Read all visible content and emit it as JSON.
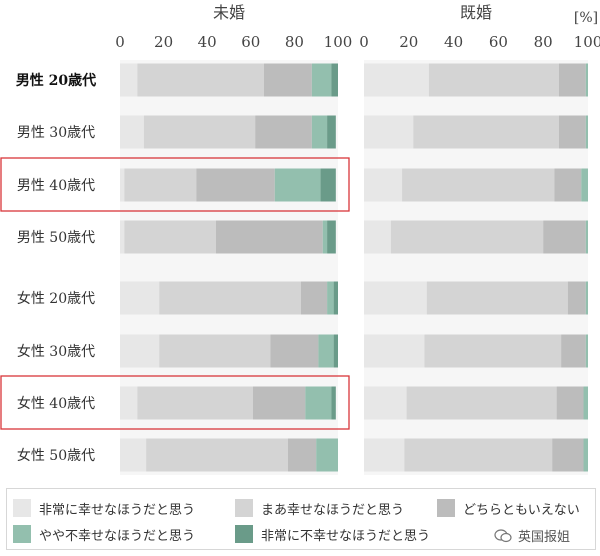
{
  "chart_data": {
    "type": "bar",
    "orientation": "horizontal",
    "stacked": true,
    "unit": "[%]",
    "xlim": [
      0,
      100
    ],
    "x_ticks": [
      "0",
      "20",
      "40",
      "60",
      "80",
      "100"
    ],
    "categories": [
      "男性 20歳代",
      "男性 30歳代",
      "男性 40歳代",
      "男性 50歳代",
      "女性 20歳代",
      "女性 30歳代",
      "女性 40歳代",
      "女性 50歳代"
    ],
    "bold_category_index": 0,
    "highlighted_categories": [
      2,
      6
    ],
    "series_names": [
      "非常に幸せなほうだと思う",
      "まあ幸せなほうだと思う",
      "どちらともいえない",
      "やや不幸せなほうだと思う",
      "非常に不幸せなほうだと思う"
    ],
    "series_colors": [
      "#e7e7e7",
      "#d4d4d4",
      "#bcbcbc",
      "#93bfae",
      "#6a9b89"
    ],
    "panels": [
      {
        "title": "未婚",
        "values": [
          [
            8,
            58,
            22,
            9,
            3
          ],
          [
            11,
            51,
            26,
            7,
            4
          ],
          [
            2,
            33,
            36,
            21,
            7
          ],
          [
            2,
            42,
            49,
            2,
            4
          ],
          [
            18,
            65,
            12,
            3,
            2
          ],
          [
            18,
            51,
            22,
            7,
            2
          ],
          [
            8,
            53,
            24,
            12,
            2
          ],
          [
            12,
            65,
            13,
            10,
            0
          ]
        ]
      },
      {
        "title": "既婚",
        "values": [
          [
            29,
            58,
            12,
            1,
            0
          ],
          [
            22,
            65,
            12,
            1,
            0
          ],
          [
            17,
            68,
            12,
            3,
            0
          ],
          [
            12,
            68,
            19,
            1,
            0
          ],
          [
            28,
            63,
            8,
            1,
            0
          ],
          [
            27,
            61,
            11,
            1,
            0
          ],
          [
            19,
            67,
            12,
            2,
            0
          ],
          [
            18,
            66,
            14,
            2,
            0
          ]
        ]
      }
    ]
  },
  "watermark": {
    "text": "英国报姐",
    "icon": "wechat-icon"
  }
}
